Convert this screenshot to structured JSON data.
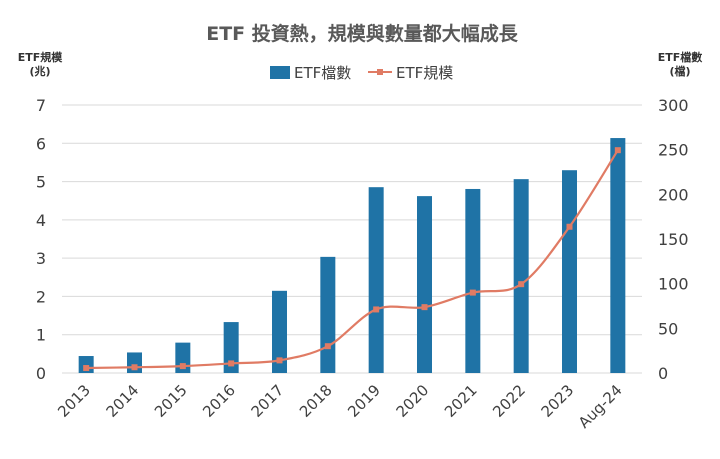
{
  "chart_data": {
    "type": "bar+line",
    "title": "ETF 投資熱，規模與數量都大幅成長",
    "left_axis_title": [
      "ETF規模",
      "(兆)"
    ],
    "right_axis_title": [
      "ETF檔數",
      "(檔)"
    ],
    "categories": [
      "2013",
      "2014",
      "2015",
      "2016",
      "2017",
      "2018",
      "2019",
      "2020",
      "2021",
      "2022",
      "2023",
      "Aug-24"
    ],
    "series": [
      {
        "name": "ETF檔數",
        "type": "bar",
        "axis": "right",
        "color": "#1F73A6",
        "values": [
          19,
          23,
          34,
          57,
          92,
          130,
          208,
          198,
          206,
          217,
          227,
          263
        ]
      },
      {
        "name": "ETF規模",
        "type": "line",
        "axis": "left",
        "color": "#E07B64",
        "values": [
          0.13,
          0.15,
          0.18,
          0.25,
          0.33,
          0.7,
          1.66,
          1.72,
          2.1,
          2.32,
          3.82,
          5.82
        ]
      }
    ],
    "left_ylim": [
      0,
      7
    ],
    "left_ticks": [
      "0",
      "1",
      "2",
      "3",
      "4",
      "5",
      "6",
      "7"
    ],
    "right_ylim": [
      0,
      300
    ],
    "right_ticks": [
      "0",
      "50",
      "100",
      "150",
      "200",
      "250",
      "300"
    ],
    "grid": true,
    "legend_position": "top-center"
  }
}
